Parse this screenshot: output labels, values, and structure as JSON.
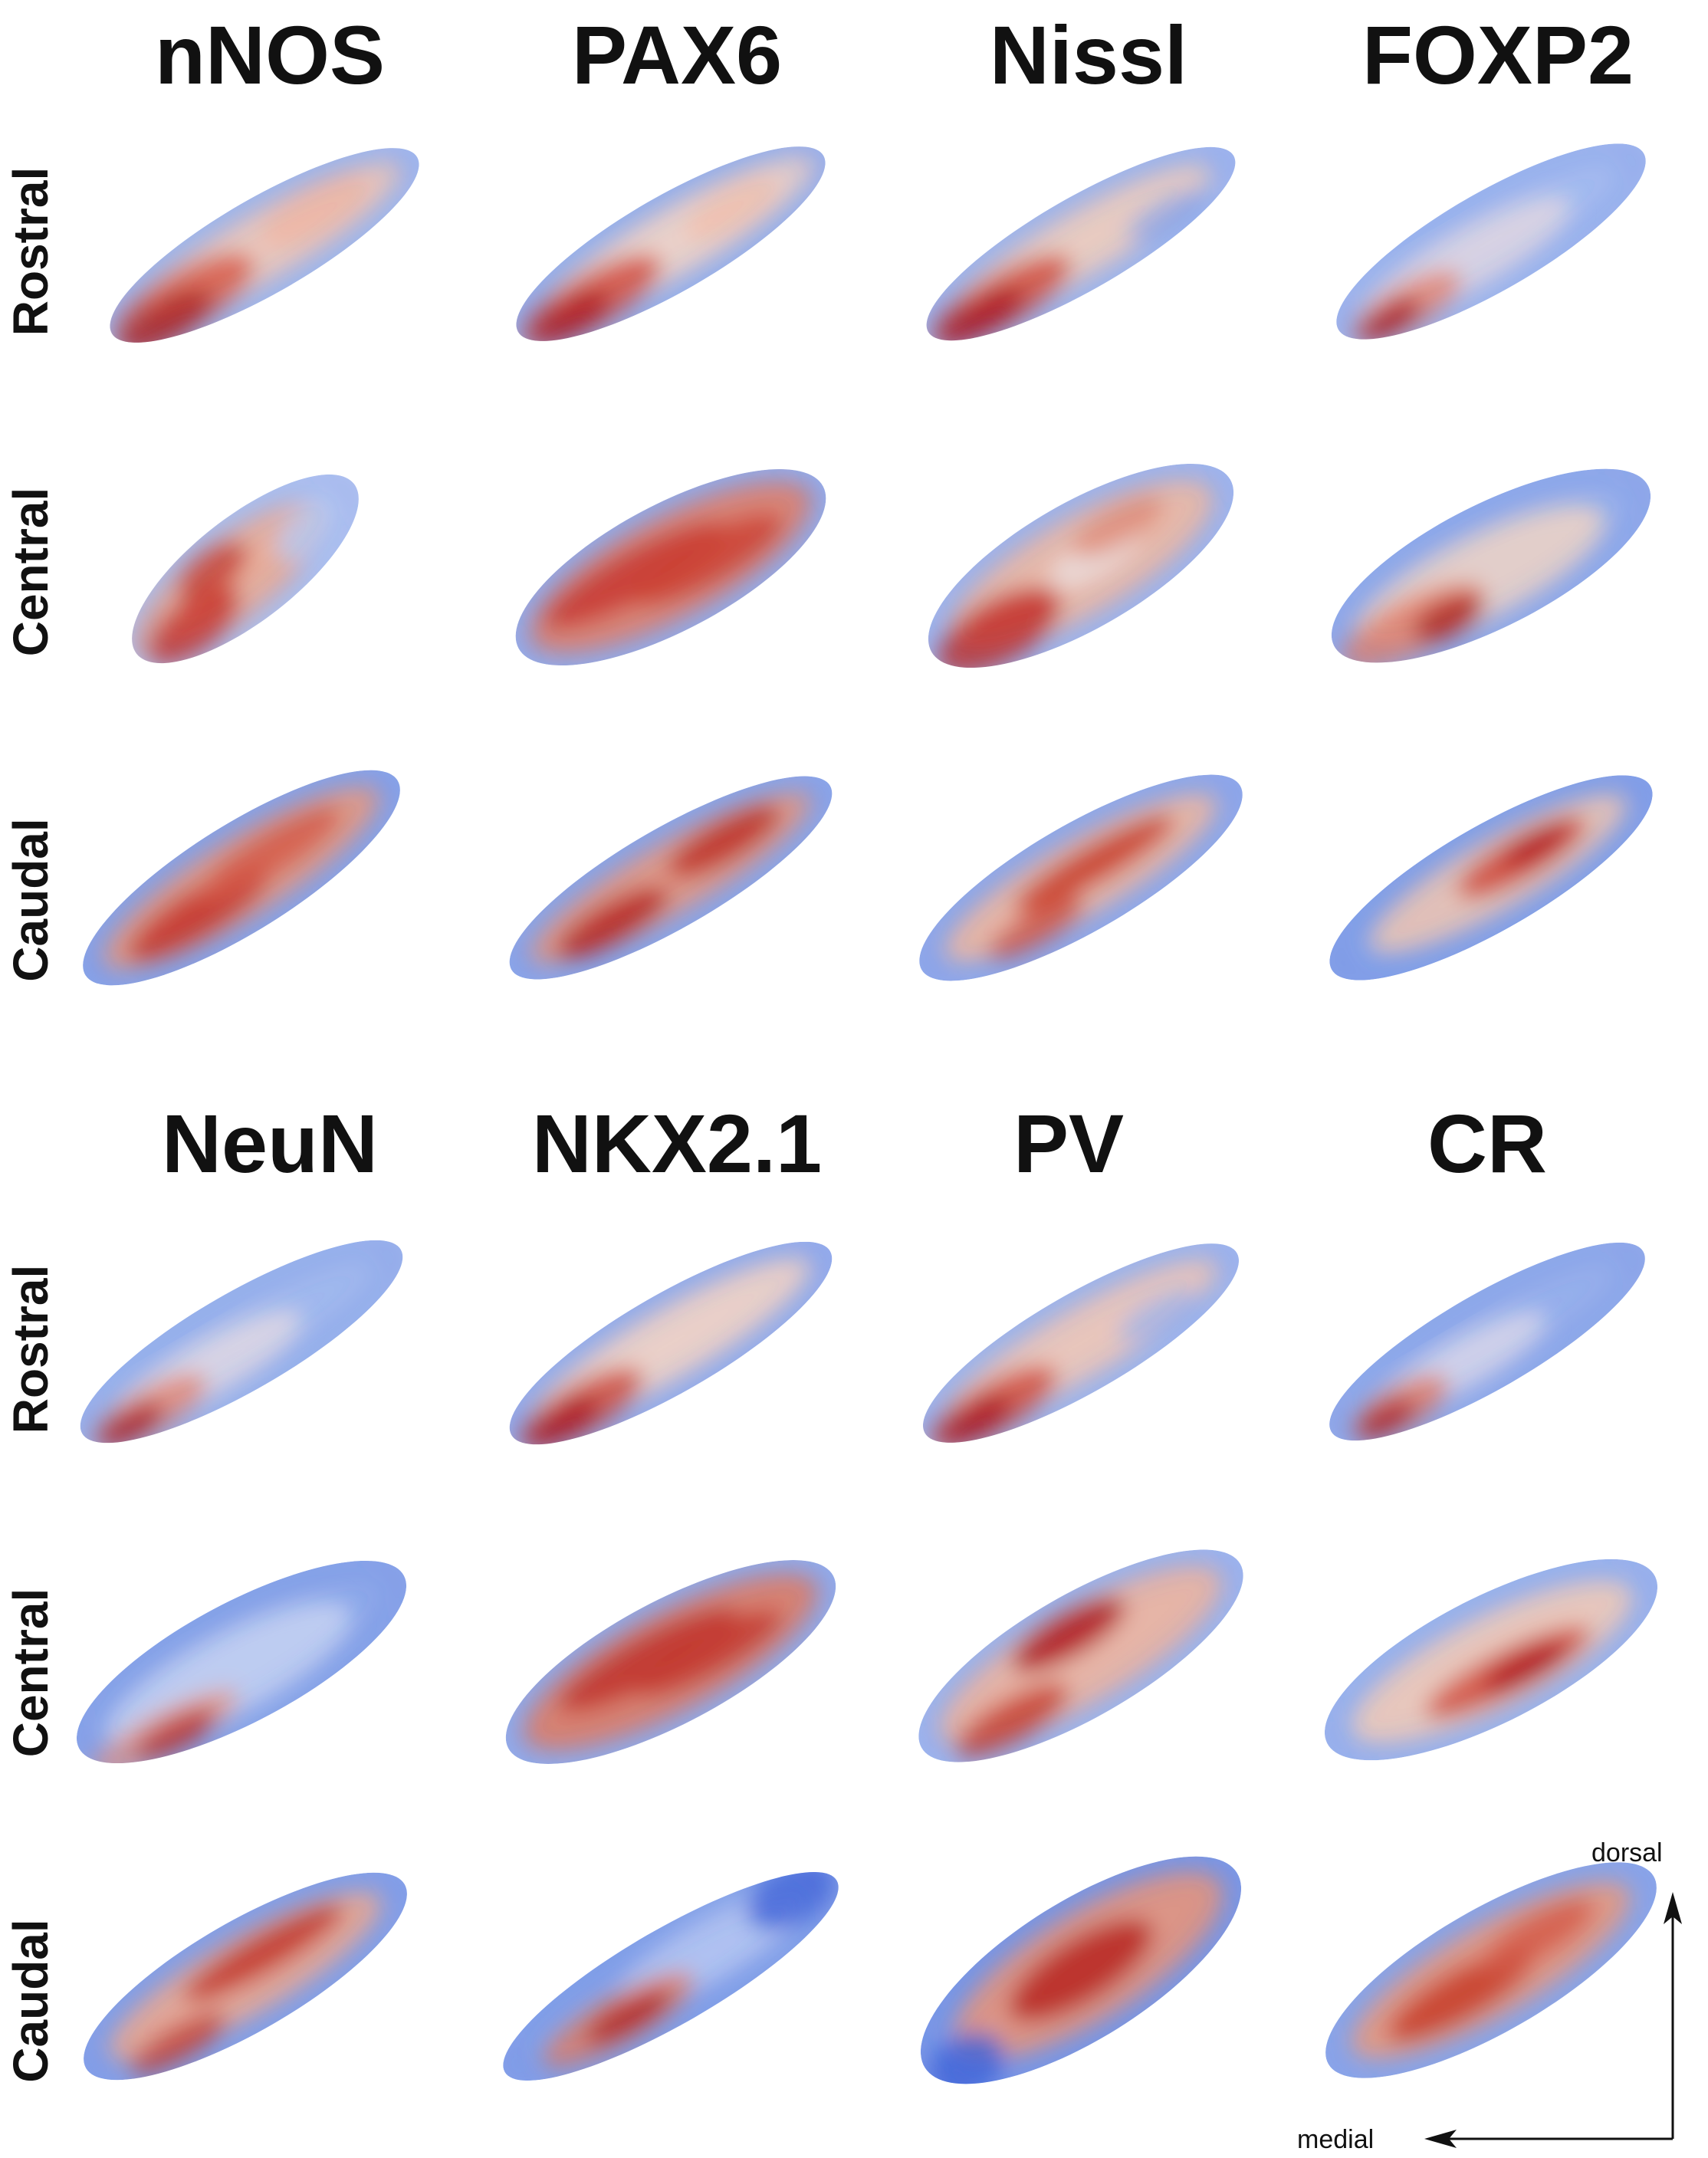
{
  "panels": [
    {
      "id": "top",
      "titles": [
        "nNOS",
        "PAX6",
        "Nissl",
        "FOXP2"
      ],
      "rows": [
        "Rostral",
        "Central",
        "Caudal"
      ]
    },
    {
      "id": "bottom",
      "titles": [
        "NeuN",
        "NKX2.1",
        "PV",
        "CR"
      ],
      "rows": [
        "Rostral",
        "Central",
        "Caudal"
      ]
    }
  ],
  "axes": {
    "vertical": "dorsal",
    "horizontal": "medial"
  },
  "colors": {
    "low": "#3f63d8",
    "mid": "#e9dad3",
    "high": "#b21e22"
  }
}
